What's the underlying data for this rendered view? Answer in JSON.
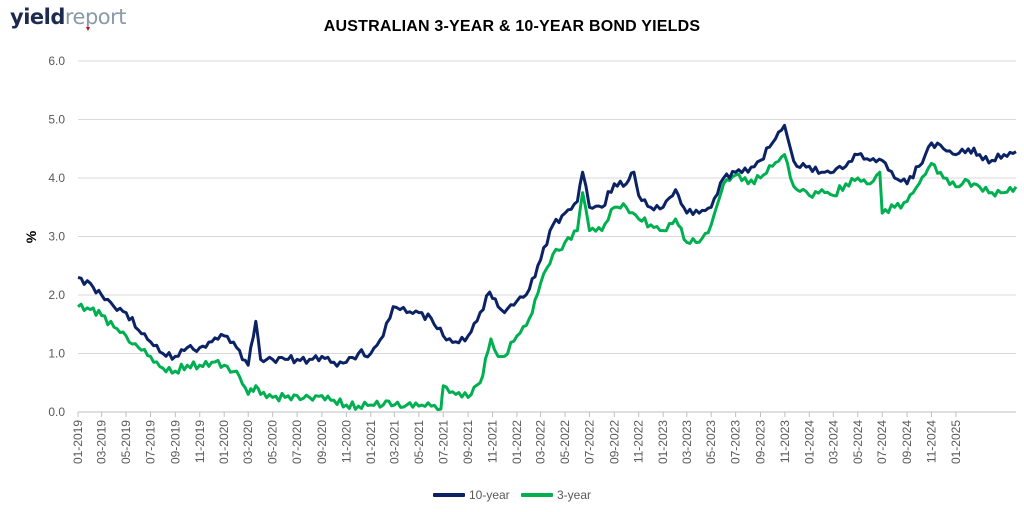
{
  "brand": {
    "part1": "yield",
    "part2": "report"
  },
  "colors": {
    "ten_year": "#0b2265",
    "three_year": "#00b050",
    "grid": "#d9d9d9",
    "axis": "#bfbfbf"
  },
  "chart_data": {
    "type": "line",
    "title": "AUSTRALIAN 3-YEAR & 10-YEAR BOND YIELDS",
    "xlabel": "",
    "ylabel": "%",
    "ylim": [
      0,
      6
    ],
    "yticks": [
      "0.0",
      "1.0",
      "2.0",
      "3.0",
      "4.0",
      "5.0",
      "6.0"
    ],
    "xlim": [
      "2019-01-01",
      "2025-05-31"
    ],
    "xticks": [
      "01-2019",
      "03-2019",
      "05-2019",
      "07-2019",
      "09-2019",
      "11-2019",
      "01-2020",
      "03-2020",
      "05-2020",
      "07-2020",
      "09-2020",
      "11-2020",
      "01-2021",
      "03-2021",
      "05-2021",
      "07-2021",
      "09-2021",
      "11-2021",
      "01-2022",
      "03-2022",
      "05-2022",
      "07-2022",
      "09-2022",
      "11-2022",
      "01-2023",
      "03-2023",
      "05-2023",
      "07-2023",
      "09-2023",
      "11-2023",
      "01-2024",
      "03-2024",
      "05-2024",
      "07-2024",
      "09-2024",
      "11-2024",
      "01-2025"
    ],
    "grid": "horizontal",
    "legend_position": "bottom",
    "series": [
      {
        "name": "10-year",
        "x": [
          "2019-01-01",
          "2019-02-01",
          "2019-03-01",
          "2019-04-01",
          "2019-05-01",
          "2019-06-01",
          "2019-07-01",
          "2019-08-01",
          "2019-09-01",
          "2019-10-01",
          "2019-11-01",
          "2019-12-01",
          "2020-01-01",
          "2020-02-01",
          "2020-03-01",
          "2020-03-20",
          "2020-04-01",
          "2020-05-01",
          "2020-06-01",
          "2020-07-01",
          "2020-08-01",
          "2020-09-01",
          "2020-10-01",
          "2020-11-01",
          "2020-12-01",
          "2021-01-01",
          "2021-02-01",
          "2021-02-26",
          "2021-03-15",
          "2021-04-01",
          "2021-05-01",
          "2021-06-01",
          "2021-07-01",
          "2021-08-01",
          "2021-09-01",
          "2021-10-01",
          "2021-10-25",
          "2021-11-15",
          "2021-12-01",
          "2022-01-01",
          "2022-02-01",
          "2022-03-01",
          "2022-04-01",
          "2022-05-01",
          "2022-06-01",
          "2022-06-14",
          "2022-07-01",
          "2022-08-01",
          "2022-09-01",
          "2022-10-01",
          "2022-10-20",
          "2022-11-01",
          "2022-12-01",
          "2023-01-01",
          "2023-02-01",
          "2023-03-01",
          "2023-04-01",
          "2023-05-01",
          "2023-06-01",
          "2023-07-01",
          "2023-08-01",
          "2023-09-01",
          "2023-10-01",
          "2023-10-31",
          "2023-11-15",
          "2023-12-01",
          "2024-01-01",
          "2024-02-01",
          "2024-03-01",
          "2024-04-01",
          "2024-05-01",
          "2024-06-01",
          "2024-07-01",
          "2024-08-01",
          "2024-09-01",
          "2024-10-01",
          "2024-11-01",
          "2024-12-01",
          "2025-01-01",
          "2025-02-01",
          "2025-03-01",
          "2025-04-01",
          "2025-05-01",
          "2025-05-31"
        ],
        "values": [
          2.3,
          2.2,
          2.0,
          1.8,
          1.7,
          1.4,
          1.2,
          1.0,
          0.95,
          1.1,
          1.1,
          1.2,
          1.3,
          1.1,
          0.8,
          1.55,
          0.9,
          0.9,
          0.9,
          0.9,
          0.9,
          0.95,
          0.85,
          0.85,
          1.0,
          1.0,
          1.3,
          1.8,
          1.75,
          1.7,
          1.7,
          1.6,
          1.3,
          1.2,
          1.3,
          1.7,
          2.05,
          1.8,
          1.7,
          1.9,
          2.1,
          2.6,
          3.2,
          3.4,
          3.6,
          4.1,
          3.5,
          3.5,
          3.9,
          3.9,
          4.1,
          3.7,
          3.5,
          3.5,
          3.8,
          3.4,
          3.4,
          3.5,
          4.0,
          4.1,
          4.1,
          4.3,
          4.6,
          4.9,
          4.5,
          4.2,
          4.2,
          4.1,
          4.1,
          4.2,
          4.4,
          4.3,
          4.3,
          4.0,
          3.9,
          4.2,
          4.6,
          4.5,
          4.4,
          4.5,
          4.4,
          4.3,
          4.4,
          4.45
        ]
      },
      {
        "name": "3-year",
        "x": [
          "2019-01-01",
          "2019-02-01",
          "2019-03-01",
          "2019-04-01",
          "2019-05-01",
          "2019-06-01",
          "2019-07-01",
          "2019-08-01",
          "2019-09-01",
          "2019-10-01",
          "2019-11-01",
          "2019-12-01",
          "2020-01-01",
          "2020-02-01",
          "2020-03-01",
          "2020-03-20",
          "2020-04-01",
          "2020-05-01",
          "2020-06-01",
          "2020-07-01",
          "2020-08-01",
          "2020-09-01",
          "2020-10-01",
          "2020-11-01",
          "2020-12-01",
          "2021-01-01",
          "2021-02-01",
          "2021-03-01",
          "2021-04-01",
          "2021-05-01",
          "2021-06-01",
          "2021-06-25",
          "2021-07-01",
          "2021-08-01",
          "2021-09-01",
          "2021-10-01",
          "2021-10-28",
          "2021-11-15",
          "2021-12-01",
          "2022-01-01",
          "2022-02-01",
          "2022-03-01",
          "2022-04-01",
          "2022-05-01",
          "2022-06-01",
          "2022-06-14",
          "2022-07-01",
          "2022-08-01",
          "2022-09-01",
          "2022-10-01",
          "2022-11-01",
          "2022-12-01",
          "2023-01-01",
          "2023-02-01",
          "2023-03-01",
          "2023-04-01",
          "2023-05-01",
          "2023-06-01",
          "2023-07-01",
          "2023-08-01",
          "2023-09-01",
          "2023-10-01",
          "2023-10-31",
          "2023-11-15",
          "2023-12-01",
          "2024-01-01",
          "2024-02-01",
          "2024-03-01",
          "2024-04-01",
          "2024-05-01",
          "2024-06-01",
          "2024-06-25",
          "2024-07-01",
          "2024-08-01",
          "2024-09-01",
          "2024-10-01",
          "2024-11-01",
          "2024-12-01",
          "2025-01-01",
          "2025-02-01",
          "2025-03-01",
          "2025-04-01",
          "2025-05-01",
          "2025-05-31"
        ],
        "values": [
          1.8,
          1.75,
          1.65,
          1.45,
          1.3,
          1.1,
          0.95,
          0.75,
          0.7,
          0.8,
          0.8,
          0.85,
          0.8,
          0.7,
          0.3,
          0.45,
          0.3,
          0.25,
          0.25,
          0.28,
          0.25,
          0.28,
          0.2,
          0.12,
          0.1,
          0.12,
          0.12,
          0.12,
          0.12,
          0.1,
          0.1,
          0.05,
          0.45,
          0.3,
          0.25,
          0.5,
          1.25,
          0.95,
          0.95,
          1.3,
          1.6,
          2.2,
          2.7,
          2.9,
          3.1,
          3.75,
          3.1,
          3.1,
          3.5,
          3.5,
          3.3,
          3.2,
          3.1,
          3.3,
          2.9,
          2.9,
          3.2,
          3.9,
          4.05,
          3.9,
          4.0,
          4.2,
          4.4,
          4.0,
          3.8,
          3.7,
          3.8,
          3.7,
          3.9,
          4.0,
          3.9,
          4.1,
          3.4,
          3.5,
          3.6,
          3.9,
          4.25,
          4.0,
          3.85,
          3.95,
          3.85,
          3.75,
          3.75,
          3.85
        ]
      }
    ]
  }
}
